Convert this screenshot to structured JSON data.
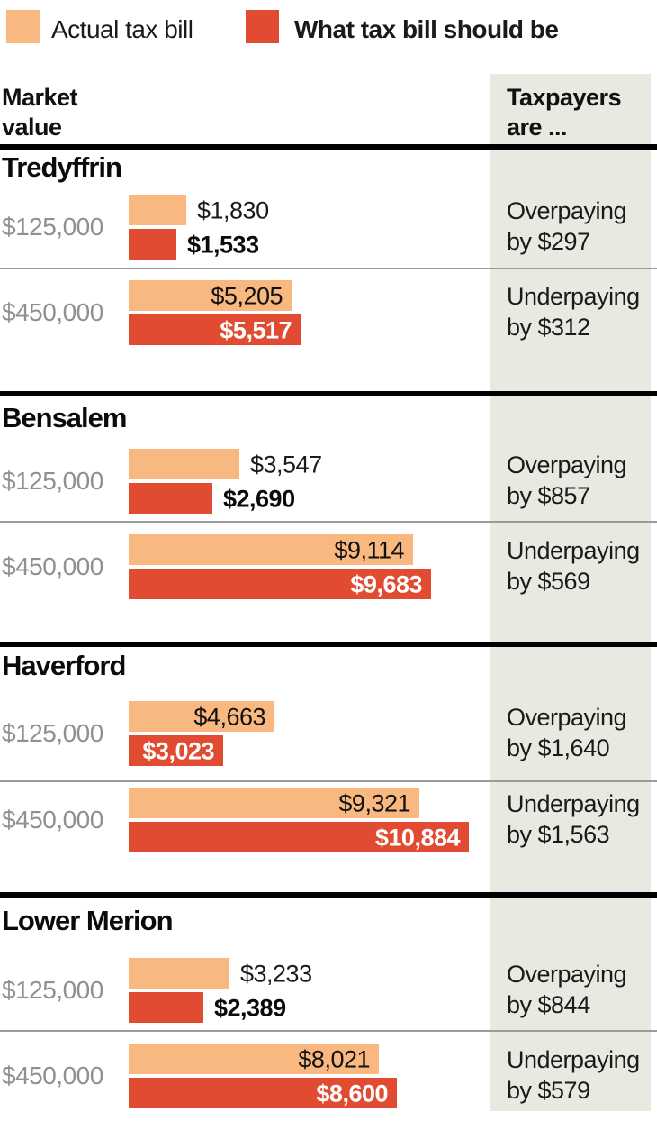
{
  "legend": {
    "actual_label": "Actual tax bill",
    "should_label": "What tax bill should be"
  },
  "header": {
    "left_line1": "Market",
    "left_line2": "value",
    "right_line1": "Taxpayers",
    "right_line2": "are ..."
  },
  "colors": {
    "actual_bar": "#f9b880",
    "should_bar": "#e14b32",
    "panel_background": "#eae9e1",
    "muted_text": "#8e9093",
    "divider_black": "#000000",
    "separator_gray": "#9b9b9b",
    "inside_red_label": "#ffffff",
    "inside_orange_label": "#111111"
  },
  "chart_data": {
    "type": "bar",
    "orientation": "horizontal",
    "series_names": [
      "Actual tax bill",
      "What tax bill should be"
    ],
    "unit": "USD",
    "sections": [
      {
        "name": "Tredyffrin",
        "rows": [
          {
            "market_value": "$125,000",
            "actual": 1830,
            "actual_label": "$1,830",
            "should": 1533,
            "should_label": "$1,533",
            "note_line1": "Overpaying",
            "note_line2": "by $297",
            "labels_inside": false
          },
          {
            "market_value": "$450,000",
            "actual": 5205,
            "actual_label": "$5,205",
            "should": 5517,
            "should_label": "$5,517",
            "note_line1": "Underpaying",
            "note_line2": "by $312",
            "labels_inside": true
          }
        ]
      },
      {
        "name": "Bensalem",
        "rows": [
          {
            "market_value": "$125,000",
            "actual": 3547,
            "actual_label": "$3,547",
            "should": 2690,
            "should_label": "$2,690",
            "note_line1": "Overpaying",
            "note_line2": "by $857",
            "labels_inside": false
          },
          {
            "market_value": "$450,000",
            "actual": 9114,
            "actual_label": "$9,114",
            "should": 9683,
            "should_label": "$9,683",
            "note_line1": "Underpaying",
            "note_line2": "by $569",
            "labels_inside": true
          }
        ]
      },
      {
        "name": "Haverford",
        "rows": [
          {
            "market_value": "$125,000",
            "actual": 4663,
            "actual_label": "$4,663",
            "should": 3023,
            "should_label": "$3,023",
            "note_line1": "Overpaying",
            "note_line2": "by $1,640",
            "labels_inside": true
          },
          {
            "market_value": "$450,000",
            "actual": 9321,
            "actual_label": "$9,321",
            "should": 10884,
            "should_label": "$10,884",
            "note_line1": "Underpaying",
            "note_line2": "by $1,563",
            "labels_inside": true
          }
        ]
      },
      {
        "name": "Lower Merion",
        "rows": [
          {
            "market_value": "$125,000",
            "actual": 3233,
            "actual_label": "$3,233",
            "should": 2389,
            "should_label": "$2,389",
            "note_line1": "Overpaying",
            "note_line2": "by $844",
            "labels_inside": false
          },
          {
            "market_value": "$450,000",
            "actual": 8021,
            "actual_label": "$8,021",
            "should": 8600,
            "should_label": "$8,600",
            "note_line1": "Underpaying",
            "note_line2": "by $579",
            "labels_inside": true
          }
        ]
      }
    ]
  }
}
